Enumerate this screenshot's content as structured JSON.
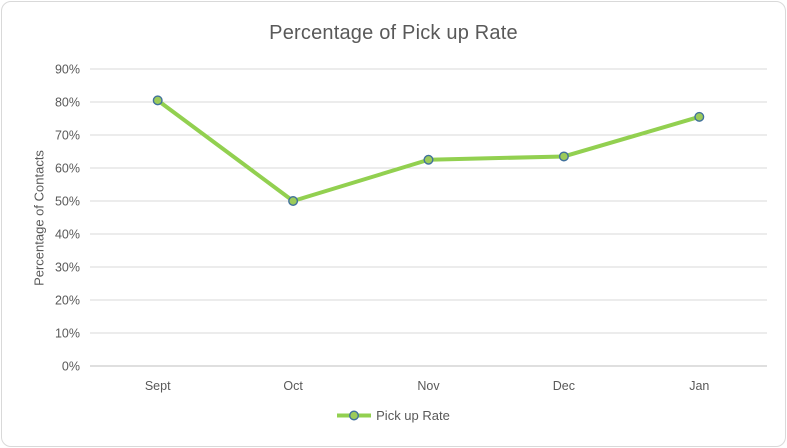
{
  "chart": {
    "title": "Percentage of Pick up Rate",
    "y_axis_title": "Percentage of Contacts",
    "legend_label": "Pick up Rate"
  },
  "chart_data": {
    "type": "line",
    "title": "Percentage of Pick up Rate",
    "categories": [
      "Sept",
      "Oct",
      "Nov",
      "Dec",
      "Jan"
    ],
    "series": [
      {
        "name": "Pick up Rate",
        "values": [
          80.5,
          50,
          62.5,
          63.5,
          75.5
        ]
      }
    ],
    "xlabel": "",
    "ylabel": "Percentage of Contacts",
    "ylim": [
      0,
      90
    ],
    "y_ticks": [
      "0%",
      "10%",
      "20%",
      "30%",
      "40%",
      "50%",
      "60%",
      "70%",
      "80%",
      "90%"
    ],
    "y_tick_step": 10,
    "grid": true,
    "legend_position": "bottom",
    "colors": {
      "line": "#92D050",
      "marker_fill": "#9CCB5A",
      "marker_stroke": "#41719C",
      "gridline": "#D9D9D9",
      "axis_line": "#BFBFBF",
      "text": "#595959",
      "border": "#D9D9D9"
    }
  }
}
